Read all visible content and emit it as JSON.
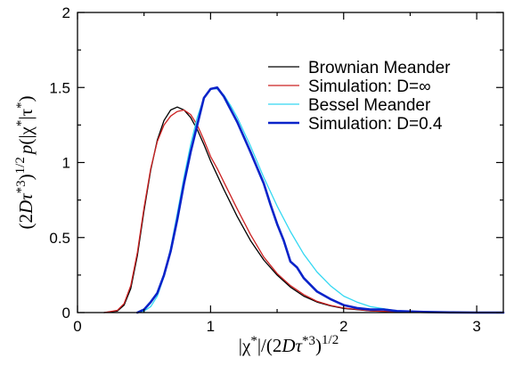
{
  "chart_data": {
    "type": "line",
    "xlabel": {
      "pre": "|χ",
      "sup1": "*",
      "mid": "|/(2",
      "italic1": "Dτ",
      "sup2": "*3",
      "post": ")",
      "sup3": "1/2"
    },
    "ylabel": {
      "pre": "(2",
      "italic1": "Dτ",
      "sup1": "*3",
      "mid1": ")",
      "sup2": "1/2",
      "italic2": "p",
      "mid2": "(|χ",
      "sup3": "*",
      "mid3": "|τ",
      "sup4": "*",
      "post": ")"
    },
    "xlim": [
      0,
      3.2
    ],
    "ylim": [
      0,
      2
    ],
    "xticks": [
      {
        "value": 0,
        "label": "0"
      },
      {
        "value": 1,
        "label": "1"
      },
      {
        "value": 2,
        "label": "2"
      },
      {
        "value": 3,
        "label": "3"
      }
    ],
    "yticks": [
      {
        "value": 0,
        "label": "0"
      },
      {
        "value": 0.5,
        "label": "0.5"
      },
      {
        "value": 1,
        "label": "1"
      },
      {
        "value": 1.5,
        "label": "1.5"
      },
      {
        "value": 2,
        "label": "2"
      }
    ],
    "legend_position": "top-right",
    "series": [
      {
        "name": "Brownian Meander",
        "color": "#000000",
        "width": 1.3,
        "x": [
          0.2,
          0.3,
          0.35,
          0.4,
          0.45,
          0.5,
          0.55,
          0.6,
          0.65,
          0.7,
          0.75,
          0.8,
          0.85,
          0.9,
          0.95,
          1.0,
          1.1,
          1.2,
          1.3,
          1.4,
          1.5,
          1.6,
          1.7,
          1.8,
          1.9,
          2.0,
          2.2,
          2.4,
          2.6,
          2.8,
          3.0,
          3.2
        ],
        "y": [
          0.0,
          0.01,
          0.05,
          0.16,
          0.38,
          0.68,
          0.95,
          1.15,
          1.28,
          1.35,
          1.37,
          1.35,
          1.3,
          1.22,
          1.12,
          1.01,
          0.82,
          0.64,
          0.48,
          0.35,
          0.25,
          0.17,
          0.11,
          0.07,
          0.045,
          0.028,
          0.011,
          0.004,
          0.0015,
          0.0005,
          0.0,
          0.0
        ]
      },
      {
        "name": "Simulation: D=∞",
        "color": "#cc2222",
        "width": 1.3,
        "x": [
          0.2,
          0.3,
          0.35,
          0.4,
          0.45,
          0.5,
          0.55,
          0.6,
          0.65,
          0.7,
          0.75,
          0.8,
          0.85,
          0.9,
          0.95,
          1.0,
          1.05,
          1.1,
          1.2,
          1.3,
          1.4,
          1.5,
          1.6,
          1.7,
          1.8,
          1.9,
          2.0,
          2.2,
          2.4,
          2.6,
          2.8,
          3.0,
          3.2
        ],
        "y": [
          0.0,
          0.015,
          0.06,
          0.18,
          0.4,
          0.7,
          0.96,
          1.14,
          1.25,
          1.31,
          1.34,
          1.35,
          1.32,
          1.25,
          1.15,
          1.04,
          0.96,
          0.87,
          0.69,
          0.52,
          0.37,
          0.26,
          0.18,
          0.12,
          0.075,
          0.048,
          0.03,
          0.012,
          0.005,
          0.002,
          0.001,
          0.0,
          0.0
        ]
      },
      {
        "name": "Bessel Meander",
        "color": "#35d8f2",
        "width": 1.3,
        "x": [
          0.45,
          0.5,
          0.55,
          0.6,
          0.65,
          0.7,
          0.75,
          0.8,
          0.85,
          0.9,
          0.95,
          1.0,
          1.05,
          1.1,
          1.15,
          1.2,
          1.3,
          1.4,
          1.5,
          1.6,
          1.7,
          1.8,
          1.9,
          2.0,
          2.1,
          2.2,
          2.4,
          2.6,
          2.8,
          3.0,
          3.2
        ],
        "y": [
          0.0,
          0.01,
          0.04,
          0.11,
          0.24,
          0.43,
          0.66,
          0.9,
          1.12,
          1.3,
          1.43,
          1.49,
          1.49,
          1.45,
          1.38,
          1.3,
          1.11,
          0.9,
          0.71,
          0.54,
          0.39,
          0.27,
          0.18,
          0.11,
          0.07,
          0.04,
          0.012,
          0.003,
          0.0008,
          0.0,
          0.0
        ]
      },
      {
        "name": "Simulation: D=0.4",
        "color": "#0a23c9",
        "width": 2.6,
        "x": [
          0.45,
          0.5,
          0.55,
          0.6,
          0.65,
          0.7,
          0.75,
          0.8,
          0.85,
          0.9,
          0.95,
          1.0,
          1.05,
          1.1,
          1.2,
          1.3,
          1.4,
          1.45,
          1.5,
          1.55,
          1.6,
          1.65,
          1.7,
          1.8,
          1.9,
          2.0,
          2.1,
          2.2,
          2.3,
          2.4,
          2.6,
          2.8,
          3.0,
          3.2
        ],
        "y": [
          0.0,
          0.02,
          0.07,
          0.13,
          0.25,
          0.41,
          0.62,
          0.86,
          1.07,
          1.25,
          1.43,
          1.49,
          1.5,
          1.44,
          1.27,
          1.07,
          0.86,
          0.72,
          0.59,
          0.48,
          0.34,
          0.3,
          0.23,
          0.14,
          0.09,
          0.05,
          0.03,
          0.02,
          0.02,
          0.01,
          0.004,
          0.001,
          0.0,
          0.0
        ]
      }
    ]
  }
}
